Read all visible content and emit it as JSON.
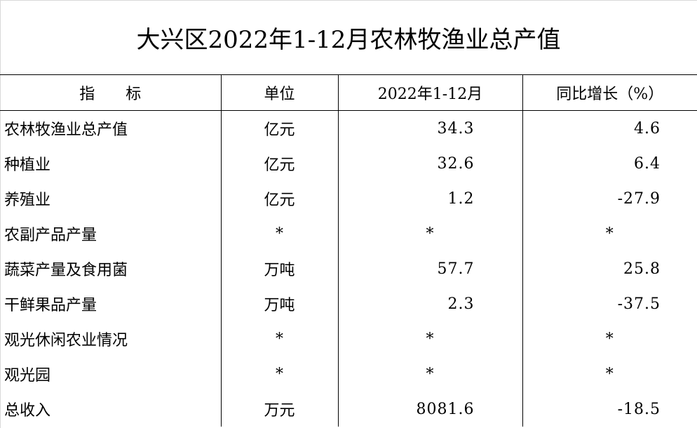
{
  "title": "大兴区2022年1-12月农林牧渔业总产值",
  "headers": {
    "indicator_a": "指",
    "indicator_b": "标",
    "unit": "单位",
    "period": "2022年1-12月",
    "yoy": "同比增长（%）"
  },
  "rows": [
    {
      "label": "农林牧渔业总产值",
      "unit": "亿元",
      "value": "34.3",
      "yoy": "4.6"
    },
    {
      "label": "种植业",
      "unit": "亿元",
      "value": "32.6",
      "yoy": "6.4"
    },
    {
      "label": "养殖业",
      "unit": "亿元",
      "value": "1.2",
      "yoy": "-27.9"
    },
    {
      "label": "农副产品产量",
      "unit": "*",
      "value": "*",
      "yoy": "*"
    },
    {
      "label": "蔬菜产量及食用菌",
      "unit": "万吨",
      "value": "57.7",
      "yoy": "25.8"
    },
    {
      "label": "干鲜果品产量",
      "unit": "万吨",
      "value": "2.3",
      "yoy": "-37.5"
    },
    {
      "label": "观光休闲农业情况",
      "unit": "*",
      "value": "*",
      "yoy": "*"
    },
    {
      "label": "观光园",
      "unit": "*",
      "value": "*",
      "yoy": "*"
    },
    {
      "label": "总收入",
      "unit": "万元",
      "value": "8081.6",
      "yoy": "-18.5"
    }
  ]
}
